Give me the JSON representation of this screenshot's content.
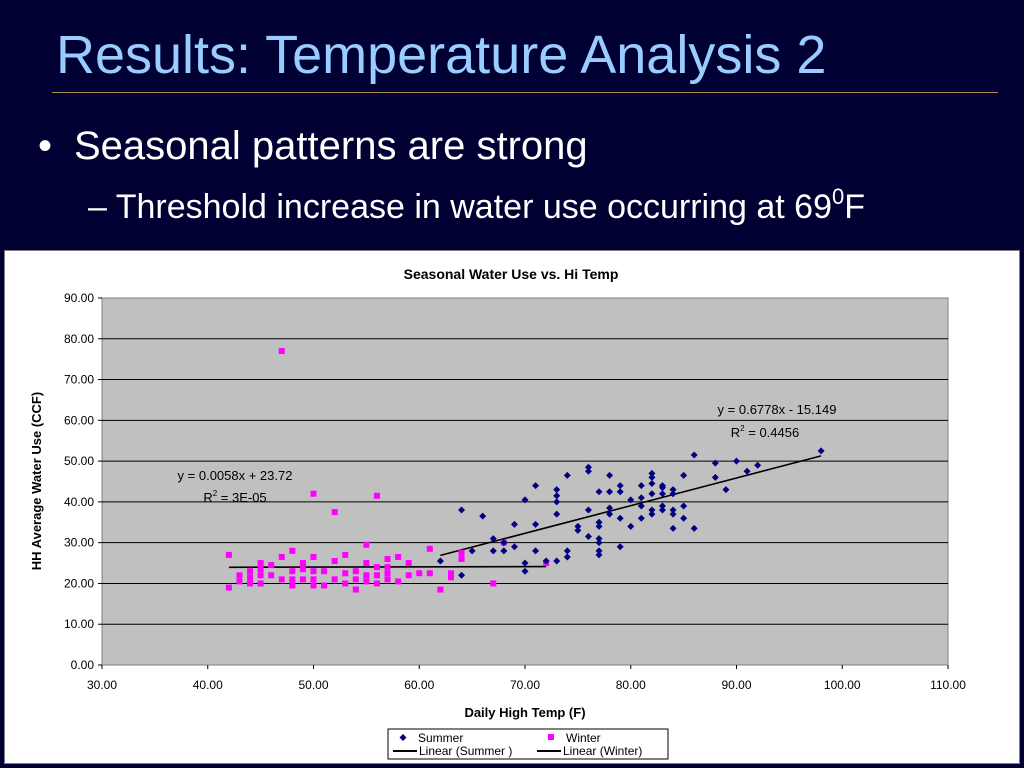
{
  "slide": {
    "title": "Results: Temperature Analysis 2",
    "bullet": "Seasonal patterns are strong",
    "sub_bullet_prefix": "– Threshold increase in water use occurring at 69",
    "sub_bullet_sup": "0",
    "sub_bullet_suffix": "F"
  },
  "colors": {
    "background": "#000033",
    "title": "#99ccff",
    "plot_area": "#c0c0c0",
    "summer": "#000080",
    "winter": "#ff00ff"
  },
  "chart_data": {
    "type": "scatter",
    "title": "Seasonal Water Use vs. Hi Temp",
    "xlabel": "Daily High Temp (F)",
    "ylabel": "HH Average Water Use (CCF)",
    "xlim": [
      30,
      110
    ],
    "ylim": [
      0,
      90
    ],
    "xticks": [
      "30.00",
      "40.00",
      "50.00",
      "60.00",
      "70.00",
      "80.00",
      "90.00",
      "100.00",
      "110.00"
    ],
    "yticks": [
      "0.00",
      "10.00",
      "20.00",
      "30.00",
      "40.00",
      "50.00",
      "60.00",
      "70.00",
      "80.00",
      "90.00"
    ],
    "grid": "horizontal",
    "legend_position": "bottom",
    "series": [
      {
        "name": "Summer",
        "marker": "diamond",
        "color": "#000080",
        "points": [
          [
            62,
            25.5
          ],
          [
            64,
            22
          ],
          [
            64,
            38
          ],
          [
            65,
            28
          ],
          [
            66,
            36.5
          ],
          [
            67,
            28
          ],
          [
            67,
            31
          ],
          [
            68,
            28
          ],
          [
            68,
            30
          ],
          [
            69,
            29
          ],
          [
            69,
            34.5
          ],
          [
            70,
            23
          ],
          [
            70,
            25
          ],
          [
            70,
            40.5
          ],
          [
            71,
            28
          ],
          [
            71,
            34.5
          ],
          [
            71,
            44
          ],
          [
            72,
            25.5
          ],
          [
            73,
            25.5
          ],
          [
            73,
            37
          ],
          [
            73,
            40
          ],
          [
            73,
            41.5
          ],
          [
            73,
            43
          ],
          [
            74,
            26.5
          ],
          [
            74,
            28
          ],
          [
            74,
            46.5
          ],
          [
            75,
            33
          ],
          [
            75,
            34
          ],
          [
            76,
            31.5
          ],
          [
            76,
            38
          ],
          [
            76,
            47.5
          ],
          [
            76,
            48.5
          ],
          [
            77,
            27
          ],
          [
            77,
            28
          ],
          [
            77,
            30
          ],
          [
            77,
            31
          ],
          [
            77,
            34
          ],
          [
            77,
            35
          ],
          [
            77,
            42.5
          ],
          [
            78,
            37
          ],
          [
            78,
            38.5
          ],
          [
            78,
            42.5
          ],
          [
            78,
            46.5
          ],
          [
            79,
            29
          ],
          [
            79,
            36
          ],
          [
            79,
            42.5
          ],
          [
            79,
            44
          ],
          [
            80,
            34
          ],
          [
            80,
            40.5
          ],
          [
            81,
            36
          ],
          [
            81,
            39
          ],
          [
            81,
            41
          ],
          [
            81,
            44
          ],
          [
            82,
            37
          ],
          [
            82,
            38
          ],
          [
            82,
            42
          ],
          [
            82,
            44.5
          ],
          [
            82,
            46
          ],
          [
            82,
            47
          ],
          [
            83,
            38
          ],
          [
            83,
            39
          ],
          [
            83,
            42
          ],
          [
            83,
            43.5
          ],
          [
            83,
            44
          ],
          [
            84,
            33.5
          ],
          [
            84,
            37
          ],
          [
            84,
            38
          ],
          [
            84,
            42
          ],
          [
            84,
            43
          ],
          [
            85,
            36
          ],
          [
            85,
            39
          ],
          [
            85,
            46.5
          ],
          [
            86,
            33.5
          ],
          [
            86,
            51.5
          ],
          [
            88,
            46
          ],
          [
            88,
            49.5
          ],
          [
            89,
            43
          ],
          [
            90,
            50
          ],
          [
            91,
            47.5
          ],
          [
            92,
            49
          ],
          [
            98,
            52.5
          ]
        ]
      },
      {
        "name": "Winter",
        "marker": "square",
        "color": "#ff00ff",
        "points": [
          [
            42,
            19
          ],
          [
            42,
            27
          ],
          [
            43,
            20.5
          ],
          [
            43,
            22
          ],
          [
            44,
            20
          ],
          [
            44,
            21.5
          ],
          [
            44,
            23
          ],
          [
            45,
            20
          ],
          [
            45,
            22
          ],
          [
            45,
            23.5
          ],
          [
            45,
            25
          ],
          [
            46,
            22
          ],
          [
            46,
            24.5
          ],
          [
            47,
            21
          ],
          [
            47,
            26.5
          ],
          [
            47,
            77
          ],
          [
            48,
            19.5
          ],
          [
            48,
            21
          ],
          [
            48,
            23
          ],
          [
            48,
            28
          ],
          [
            49,
            21
          ],
          [
            49,
            23.5
          ],
          [
            49,
            25
          ],
          [
            50,
            19.5
          ],
          [
            50,
            21
          ],
          [
            50,
            23
          ],
          [
            50,
            26.5
          ],
          [
            50,
            42
          ],
          [
            51,
            19.5
          ],
          [
            51,
            23
          ],
          [
            52,
            21
          ],
          [
            52,
            25.5
          ],
          [
            52,
            37.5
          ],
          [
            53,
            20
          ],
          [
            53,
            22.5
          ],
          [
            53,
            27
          ],
          [
            54,
            18.5
          ],
          [
            54,
            21
          ],
          [
            54,
            23
          ],
          [
            55,
            20.5
          ],
          [
            55,
            22
          ],
          [
            55,
            25
          ],
          [
            55,
            29.5
          ],
          [
            56,
            20
          ],
          [
            56,
            22
          ],
          [
            56,
            24
          ],
          [
            56,
            41.5
          ],
          [
            57,
            21
          ],
          [
            57,
            22.5
          ],
          [
            57,
            24
          ],
          [
            57,
            26
          ],
          [
            58,
            20.5
          ],
          [
            58,
            26.5
          ],
          [
            59,
            22
          ],
          [
            59,
            25
          ],
          [
            60,
            22.5
          ],
          [
            61,
            22.5
          ],
          [
            61,
            28.5
          ],
          [
            62,
            18.5
          ],
          [
            63,
            21.5
          ],
          [
            63,
            22.5
          ],
          [
            64,
            26
          ],
          [
            64,
            27.5
          ],
          [
            67,
            20
          ],
          [
            68,
            30
          ],
          [
            72,
            25
          ]
        ]
      }
    ],
    "trendlines": [
      {
        "name": "Linear (Summer )",
        "slope": 0.6778,
        "intercept": -15.149,
        "x_range": [
          62,
          98
        ],
        "equation": "y = 0.6778x - 15.149",
        "r2_prefix": "R",
        "r2_sup": "2",
        "r2_value": " = 0.4456"
      },
      {
        "name": "Linear (Winter)",
        "slope": 0.0058,
        "intercept": 23.72,
        "x_range": [
          42,
          72
        ],
        "equation": "y = 0.0058x + 23.72",
        "r2_prefix": "R",
        "r2_sup": "2",
        "r2_value": " = 3E-05"
      }
    ],
    "legend": [
      "Summer",
      "Winter",
      "Linear (Summer )",
      "Linear (Winter)"
    ]
  }
}
